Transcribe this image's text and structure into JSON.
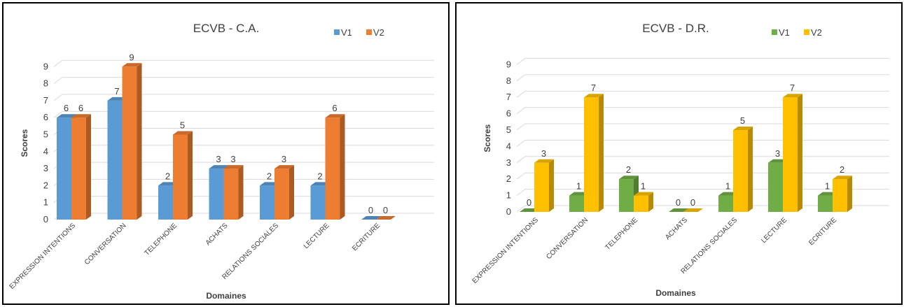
{
  "chart_data": [
    {
      "type": "bar",
      "title": "ECVB - C.A.",
      "xlabel": "Domaines",
      "ylabel": "Scores",
      "ylim": [
        0,
        9
      ],
      "yticks": [
        0,
        1,
        2,
        3,
        4,
        5,
        6,
        7,
        8,
        9
      ],
      "categories": [
        "EXPRESSION INTENTIONS",
        "CONVERSATION",
        "TELEPHONE",
        "ACHATS",
        "RELATIONS SOCIALES",
        "LECTURE",
        "ECRITURE"
      ],
      "series": [
        {
          "name": "V1",
          "color": "#5b9bd5",
          "values": [
            6,
            7,
            2,
            3,
            2,
            2,
            0
          ]
        },
        {
          "name": "V2",
          "color": "#ed7d31",
          "values": [
            6,
            9,
            5,
            3,
            3,
            6,
            0
          ]
        }
      ],
      "legend": "top-right",
      "grid": true,
      "style": "3d-clustered-column"
    },
    {
      "type": "bar",
      "title": "ECVB - D.R.",
      "xlabel": "Domaines",
      "ylabel": "Scores",
      "ylim": [
        0,
        9
      ],
      "yticks": [
        0,
        1,
        2,
        3,
        4,
        5,
        6,
        7,
        8,
        9
      ],
      "categories": [
        "EXPRESSION INTENTIONS",
        "CONVERSATION",
        "TELEPHONE",
        "ACHATS",
        "RELATIONS SOCIALES",
        "LECTURE",
        "ECRITURE"
      ],
      "series": [
        {
          "name": "V1",
          "color": "#70ad47",
          "values": [
            0,
            1,
            2,
            0,
            1,
            3,
            1
          ]
        },
        {
          "name": "V2",
          "color": "#ffc000",
          "values": [
            3,
            7,
            1,
            0,
            5,
            7,
            2
          ]
        }
      ],
      "legend": "top-right",
      "grid": true,
      "style": "3d-clustered-column"
    }
  ]
}
